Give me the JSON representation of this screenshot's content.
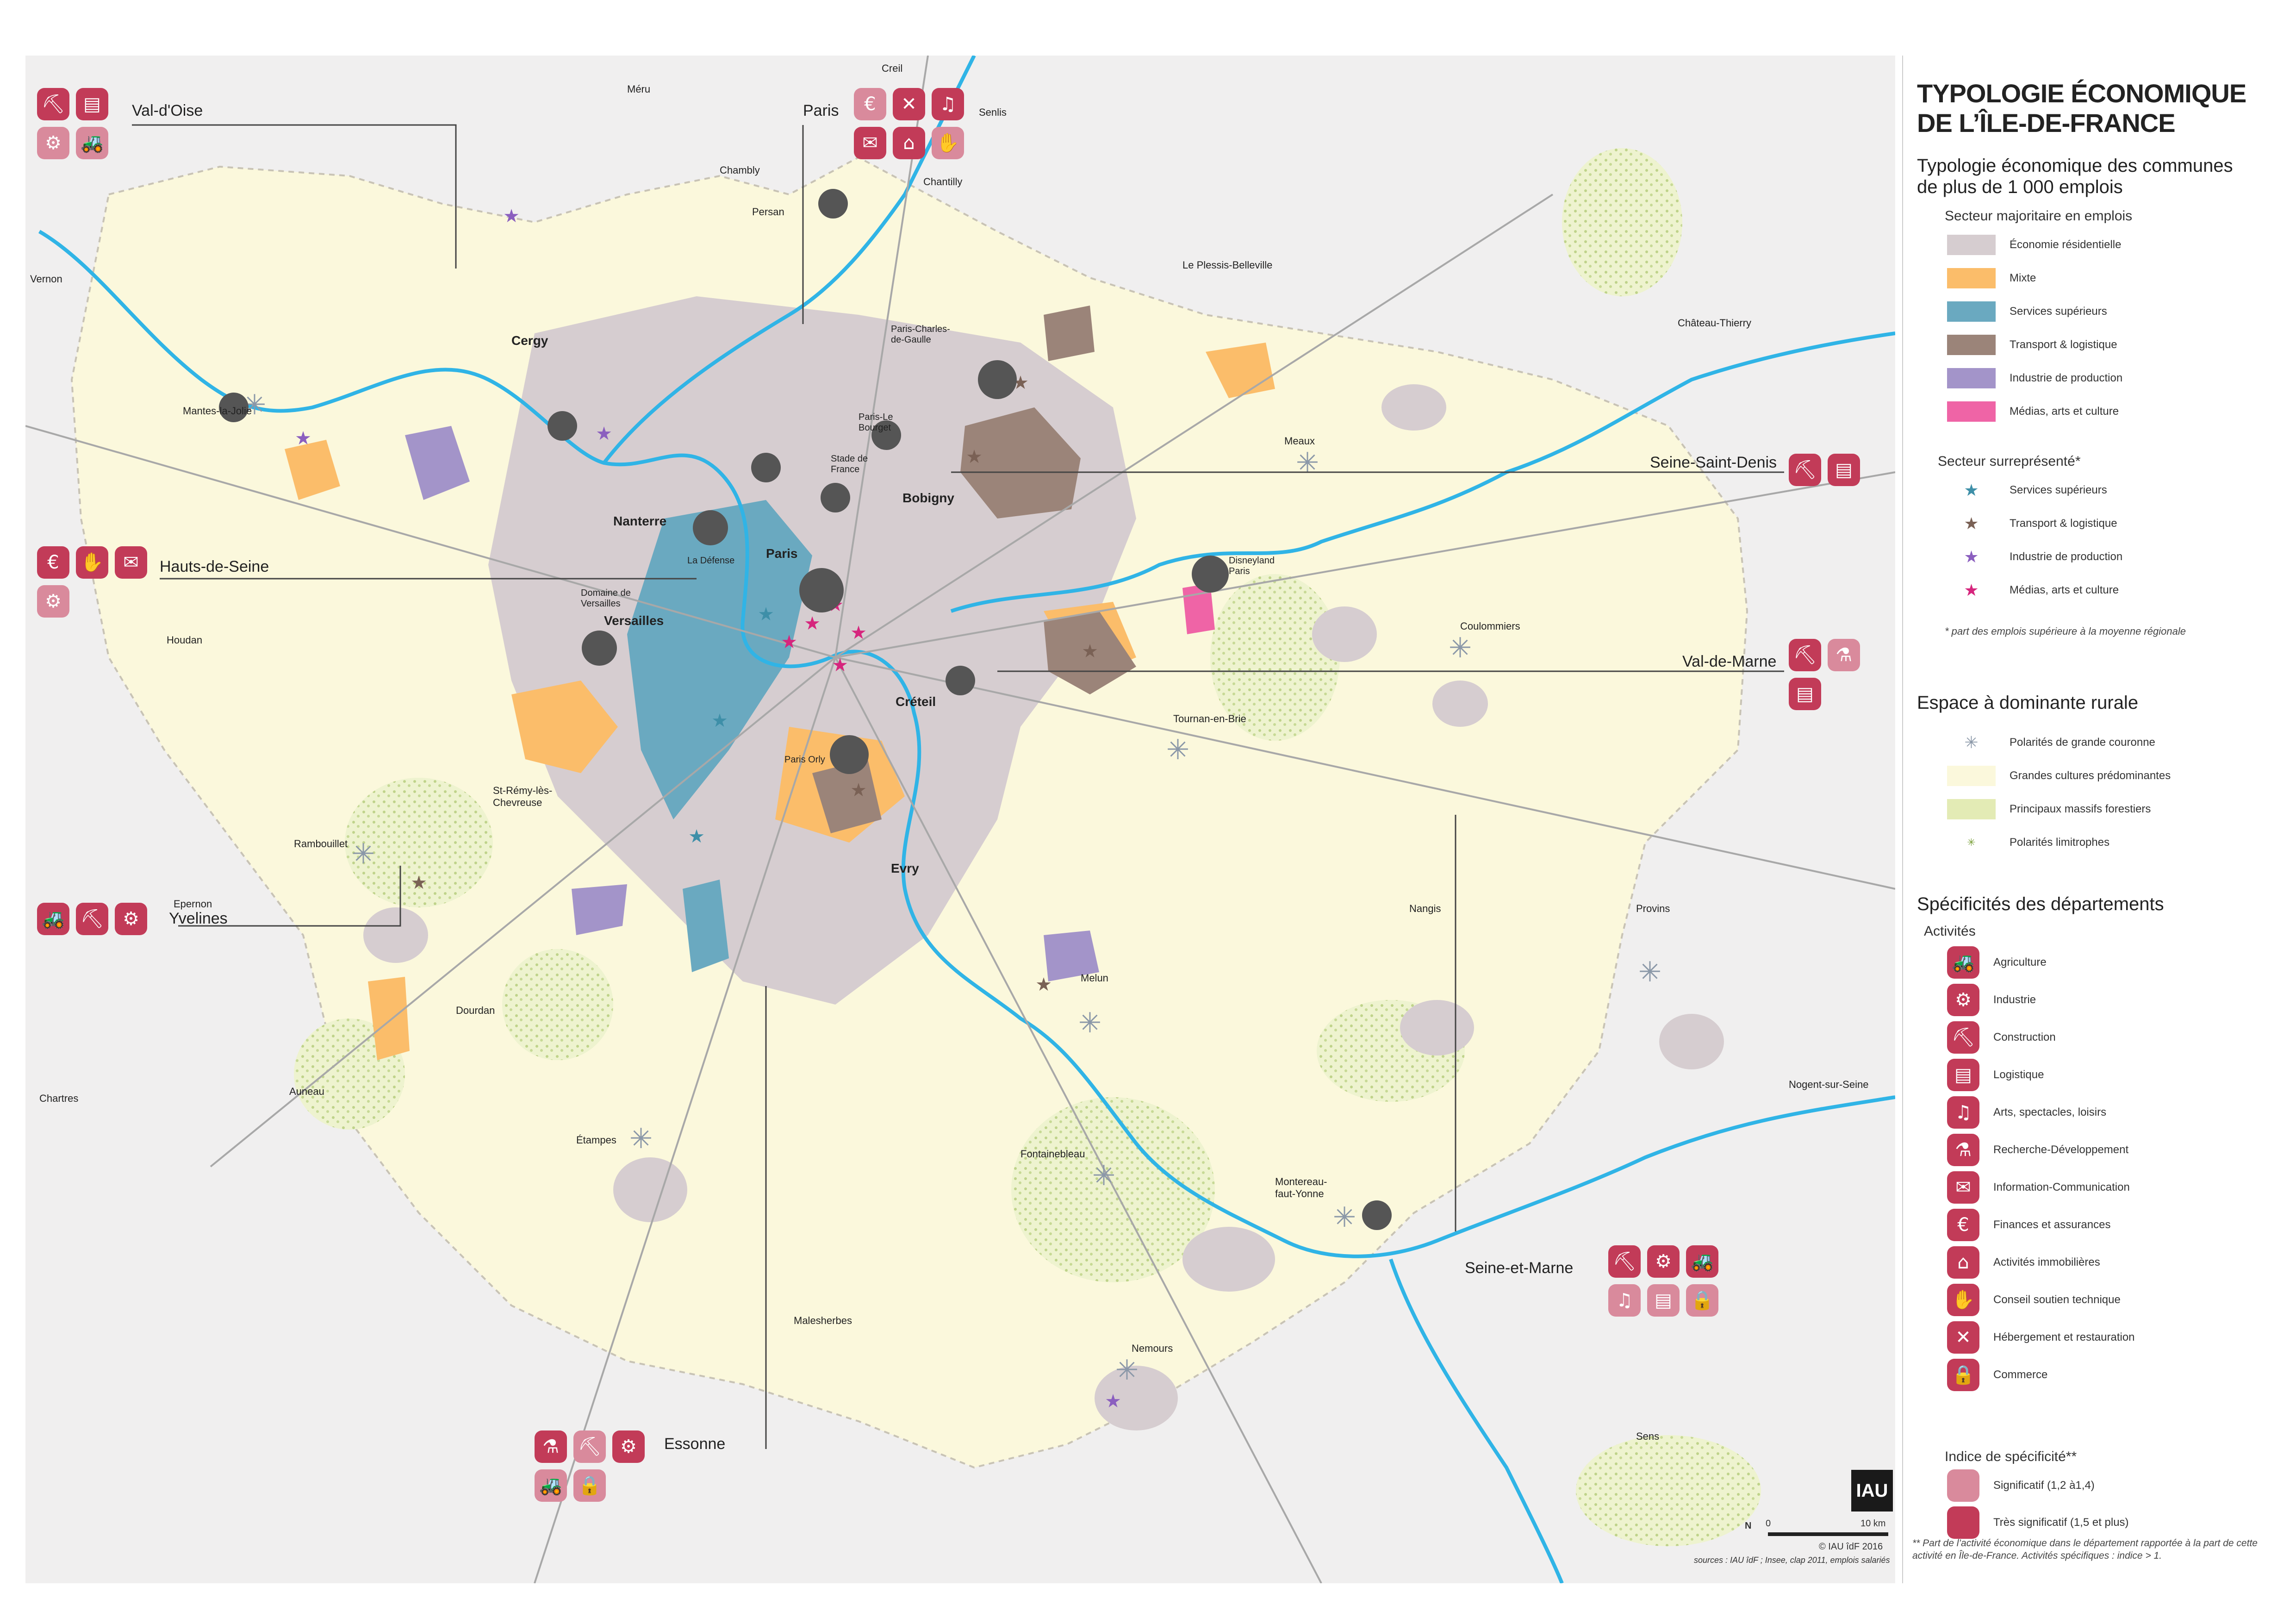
{
  "title": "TYPOLOGIE ÉCONOMIQUE DE L’ÎLE-DE-FRANCE",
  "legend": {
    "typology_heading": "Typologie économique des communes de plus de 1 000 emplois",
    "majority_heading": "Secteur majoritaire en emplois",
    "majority_items": [
      {
        "label": "Économie résidentielle",
        "color": "#d6cdd0"
      },
      {
        "label": "Mixte",
        "color": "#fbbd6a"
      },
      {
        "label": "Services supérieurs",
        "color": "#6aa9c0"
      },
      {
        "label": "Transport & logistique",
        "color": "#9b8479"
      },
      {
        "label": "Industrie de production",
        "color": "#a394c9"
      },
      {
        "label": "Médias, arts et culture",
        "color": "#ef64a6"
      }
    ],
    "over_heading": "Secteur surreprésenté*",
    "over_items": [
      {
        "label": "Services supérieurs",
        "color": "#3e8fa8"
      },
      {
        "label": "Transport & logistique",
        "color": "#7a6155"
      },
      {
        "label": "Industrie de production",
        "color": "#8b5fbf"
      },
      {
        "label": "Médias, arts et culture",
        "color": "#d6257d"
      }
    ],
    "over_note": "* part des emplois supérieure à la moyenne régionale",
    "rural_heading": "Espace à dominante rurale",
    "rural_items": [
      {
        "label": "Polarités de grande couronne",
        "kind": "polar"
      },
      {
        "label": "Grandes cultures prédominantes",
        "kind": "crop",
        "color": "#fbf8dc"
      },
      {
        "label": "Principaux massifs forestiers",
        "kind": "forest",
        "color": "#e3ebb5"
      },
      {
        "label": "Polarités limitrophes",
        "kind": "limit"
      }
    ],
    "dept_heading": "Spécificités des départements",
    "activities_heading": "Activités",
    "activities": [
      {
        "label": "Agriculture",
        "icon": "tractor-icon",
        "glyph": "🚜"
      },
      {
        "label": "Industrie",
        "icon": "gear-icon",
        "glyph": "⚙"
      },
      {
        "label": "Construction",
        "icon": "excavator-icon",
        "glyph": "⛏"
      },
      {
        "label": "Logistique",
        "icon": "container-icon",
        "glyph": "▤"
      },
      {
        "label": "Arts, spectacles, loisirs",
        "icon": "stage-icon",
        "glyph": "♫"
      },
      {
        "label": "Recherche-Développement",
        "icon": "dna-icon",
        "glyph": "⚗"
      },
      {
        "label": "Information-Communication",
        "icon": "speech-icon",
        "glyph": "✉"
      },
      {
        "label": "Finances et assurances",
        "icon": "coins-icon",
        "glyph": "€"
      },
      {
        "label": "Activités immobilières",
        "icon": "house-icon",
        "glyph": "⌂"
      },
      {
        "label": "Conseil soutien technique",
        "icon": "handshake-icon",
        "glyph": "✋"
      },
      {
        "label": "Hébergement et restauration",
        "icon": "cutlery-icon",
        "glyph": "✕"
      },
      {
        "label": "Commerce",
        "icon": "bag-icon",
        "glyph": "🔒"
      }
    ],
    "index_heading": "Indice de spécificité**",
    "index_items": [
      {
        "label": "Significatif (1,2 à1,4)",
        "color": "#d98a9c"
      },
      {
        "label": "Très significatif (1,5 et plus)",
        "color": "#c23b58"
      }
    ],
    "index_note": "** Part de l’activité économique dans le département rapportée à la part de cette activité en Île-de-France. Activités spécifiques : indice > 1.",
    "scale_start": "0",
    "scale_end": "10 km",
    "north": "N",
    "copyright": "© IAU îdF 2016",
    "sources": "sources : IAU îdF ; Insee, clap 2011, emplois salariés",
    "logo": "IAU"
  },
  "departments": [
    {
      "name": "Val-d'Oise",
      "icons": [
        [
          "excavator-icon",
          "⛏",
          "tres"
        ],
        [
          "container-icon",
          "▤",
          "tres"
        ],
        [
          "gear-icon",
          "⚙",
          "sig"
        ],
        [
          "tractor-icon",
          "🚜",
          "sig"
        ]
      ],
      "cols": 2
    },
    {
      "name": "Paris",
      "icons": [
        [
          "coins-icon",
          "€",
          "sig"
        ],
        [
          "cutlery-icon",
          "✕",
          "tres"
        ],
        [
          "stage-icon",
          "♫",
          "tres"
        ],
        [
          "speech-icon",
          "✉",
          "tres"
        ],
        [
          "house-icon",
          "⌂",
          "tres"
        ],
        [
          "handshake-icon",
          "✋",
          "sig"
        ]
      ],
      "cols": 3
    },
    {
      "name": "Seine-Saint-Denis",
      "icons": [
        [
          "excavator-icon",
          "⛏",
          "tres"
        ],
        [
          "container-icon",
          "▤",
          "tres"
        ]
      ],
      "cols": 2
    },
    {
      "name": "Hauts-de-Seine",
      "icons": [
        [
          "coins-icon",
          "€",
          "tres"
        ],
        [
          "handshake-icon",
          "✋",
          "tres"
        ],
        [
          "speech-icon",
          "✉",
          "tres"
        ],
        [
          "gear-icon",
          "⚙",
          "sig"
        ]
      ],
      "cols": 3
    },
    {
      "name": "Val-de-Marne",
      "icons": [
        [
          "excavator-icon",
          "⛏",
          "tres"
        ],
        [
          "dna-icon",
          "⚗",
          "sig"
        ],
        [
          "container-icon",
          "▤",
          "tres"
        ]
      ],
      "cols": 2
    },
    {
      "name": "Yvelines",
      "icons": [
        [
          "tractor-icon",
          "🚜",
          "tres"
        ],
        [
          "excavator-icon",
          "⛏",
          "tres"
        ],
        [
          "gear-icon",
          "⚙",
          "tres"
        ]
      ],
      "cols": 3
    },
    {
      "name": "Seine-et-Marne",
      "icons": [
        [
          "excavator-icon",
          "⛏",
          "tres"
        ],
        [
          "gear-icon",
          "⚙",
          "tres"
        ],
        [
          "tractor-icon",
          "🚜",
          "tres"
        ],
        [
          "stage-icon",
          "♫",
          "sig"
        ],
        [
          "container-icon",
          "▤",
          "sig"
        ],
        [
          "bag-icon",
          "🔒",
          "sig"
        ]
      ],
      "cols": 3
    },
    {
      "name": "Essonne",
      "icons": [
        [
          "dna-icon",
          "⚗",
          "tres"
        ],
        [
          "excavator-icon",
          "⛏",
          "sig"
        ],
        [
          "gear-icon",
          "⚙",
          "tres"
        ],
        [
          "tractor-icon",
          "🚜",
          "sig"
        ],
        [
          "bag-icon",
          "🔒",
          "sig"
        ]
      ],
      "cols": 3
    }
  ],
  "places": {
    "major": [
      "Cergy",
      "Nanterre",
      "Versailles",
      "Paris",
      "Bobigny",
      "Créteil",
      "Evry"
    ],
    "minor": [
      "Méru",
      "Creil",
      "Senlis",
      "Chantilly",
      "Chambly",
      "Persan",
      "Vernon",
      "Le Plessis-Belleville",
      "Château-Thierry",
      "Mantes-la-Jolie",
      "Meaux",
      "Paris-Charles-de-Gaulle",
      "Paris-Le Bourget",
      "Stade de France",
      "La Défense",
      "Disneyland Paris",
      "Domaine de Versailles",
      "Coulommiers",
      "Houdan",
      "Tournan-en-Brie",
      "Paris Orly",
      "St-Rémy-lès-Chevreuse",
      "Rambouillet",
      "Epernon",
      "Nangis",
      "Provins",
      "Melun",
      "Dourdan",
      "Chartres",
      "Auneau",
      "Nogent-sur-Seine",
      "Étampes",
      "Fontainebleau",
      "Montereau-faut-Yonne",
      "Malesherbes",
      "Nemours",
      "Sens"
    ]
  }
}
